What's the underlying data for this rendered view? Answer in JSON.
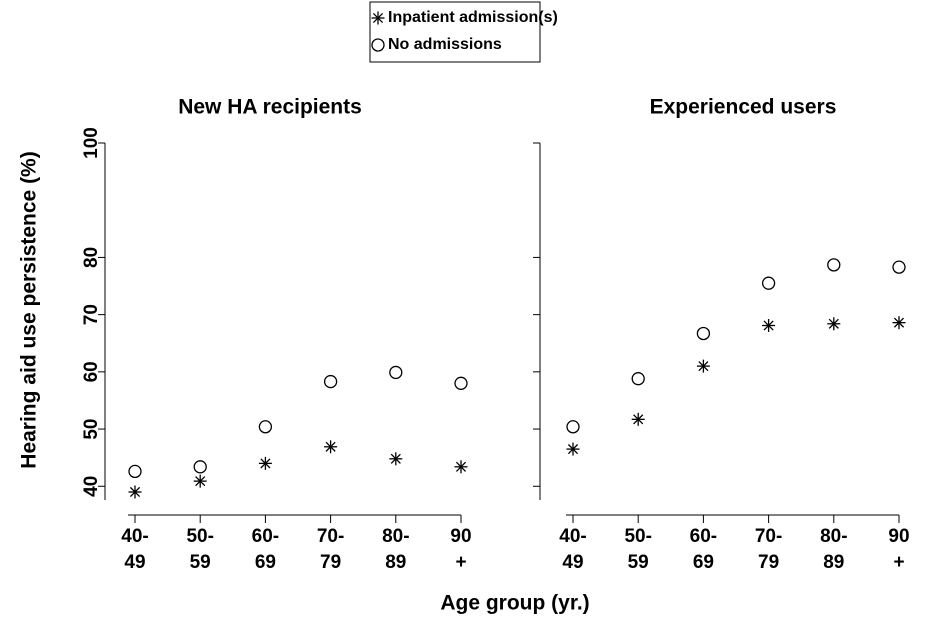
{
  "chart_data": [
    {
      "type": "scatter",
      "title": "New HA recipients",
      "y_label": "Hearing aid use persistence (%)",
      "x_label": "Age group (yr.)",
      "categories": [
        "40-\n49",
        "50-\n59",
        "60-\n69",
        "70-\n79",
        "80-\n89",
        "90\n+"
      ],
      "series": [
        {
          "name": "Inpatient admission(s)",
          "color": "#000000",
          "marker": "asterisk",
          "values": [
            39,
            40.9,
            44,
            46.9,
            44.8,
            43.4
          ]
        },
        {
          "name": "No admissions",
          "color": "#000000",
          "marker": "circle",
          "values": [
            42.6,
            43.4,
            50.4,
            58.3,
            59.9,
            58
          ]
        }
      ],
      "ylim": [
        37.6,
        100
      ],
      "yticks": [
        40,
        50,
        60,
        70,
        80,
        100
      ],
      "grid": false
    },
    {
      "type": "scatter",
      "title": "Experienced users",
      "categories": [
        "40-\n49",
        "50-\n59",
        "60-\n69",
        "70-\n79",
        "80-\n89",
        "90\n+"
      ],
      "series": [
        {
          "name": "Inpatient admission(s)",
          "color": "#000000",
          "marker": "asterisk",
          "values": [
            46.5,
            51.7,
            61,
            68.1,
            68.4,
            68.6
          ]
        },
        {
          "name": "No admissions",
          "color": "#000000",
          "marker": "circle",
          "values": [
            50.4,
            58.8,
            66.7,
            75.5,
            78.7,
            78.3
          ]
        }
      ],
      "ylim": [
        37.6,
        100
      ],
      "yticks": [
        40,
        50,
        60,
        70,
        80,
        100
      ],
      "grid": false
    }
  ]
}
